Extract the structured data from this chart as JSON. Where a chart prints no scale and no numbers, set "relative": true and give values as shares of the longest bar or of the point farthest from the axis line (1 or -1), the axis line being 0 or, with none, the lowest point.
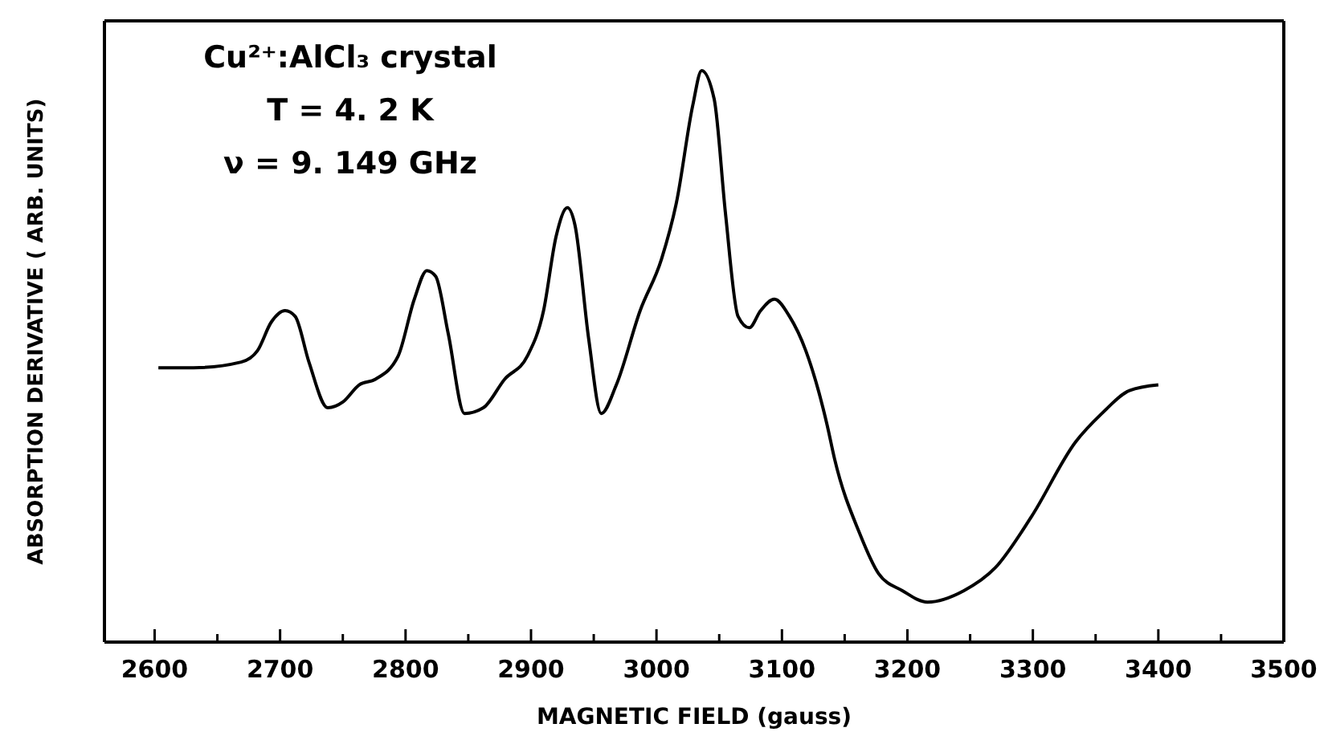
{
  "chart_data": {
    "type": "line",
    "relative": true,
    "xlabel": "MAGNETIC FIELD (gauss)",
    "ylabel": "ABSORPTION DERIVATIVE ( ARB. UNITS)",
    "annotations": [
      "Cu²⁺:AlCl₃ crystal",
      "T = 4. 2 K",
      "ν = 9. 149 GHz"
    ],
    "xlim": [
      2560,
      3500
    ],
    "xticks": [
      2600,
      {
        "value": 2650,
        "label": null
      },
      2700,
      {
        "value": 2750,
        "label": null
      },
      2800,
      {
        "value": 2850,
        "label": null
      },
      2900,
      {
        "value": 2950,
        "label": null
      },
      3000,
      {
        "value": 3050,
        "label": null
      },
      3100,
      {
        "value": 3150,
        "label": null
      },
      3200,
      {
        "value": 3250,
        "label": null
      },
      3300,
      {
        "value": 3350,
        "label": null
      },
      3400,
      {
        "value": 3450,
        "label": null
      },
      3500
    ],
    "tick_labels": "x",
    "marker": "none",
    "line_style": "solid",
    "x": [
      2603,
      2631,
      2669,
      2682,
      2693,
      2704,
      2712,
      2723,
      2738,
      2750,
      2763,
      2776,
      2794,
      2807,
      2817,
      2824,
      2834,
      2847,
      2862,
      2879,
      2897,
      2910,
      2920,
      2929,
      2935,
      2946,
      2956,
      2968,
      2987,
      3004,
      3016,
      3029,
      3036,
      3046,
      3055,
      3065,
      3074,
      3083,
      3094,
      3106,
      3119,
      3136,
      3142,
      3162,
      3177,
      3196,
      3216,
      3245,
      3270,
      3299,
      3334,
      3355,
      3377,
      3400
    ],
    "series": [
      {
        "color": "#000000",
        "values": [
          0.48,
          0.48,
          0.49,
          0.51,
          0.56,
          0.58,
          0.57,
          0.49,
          0.41,
          0.42,
          0.45,
          0.46,
          0.5,
          0.6,
          0.65,
          0.64,
          0.54,
          0.4,
          0.41,
          0.46,
          0.5,
          0.58,
          0.71,
          0.76,
          0.73,
          0.53,
          0.4,
          0.45,
          0.58,
          0.67,
          0.77,
          0.94,
          1.0,
          0.95,
          0.75,
          0.57,
          0.55,
          0.58,
          0.6,
          0.57,
          0.51,
          0.38,
          0.32,
          0.19,
          0.12,
          0.09,
          0.07,
          0.09,
          0.13,
          0.22,
          0.35,
          0.4,
          0.44,
          0.45
        ]
      }
    ]
  }
}
